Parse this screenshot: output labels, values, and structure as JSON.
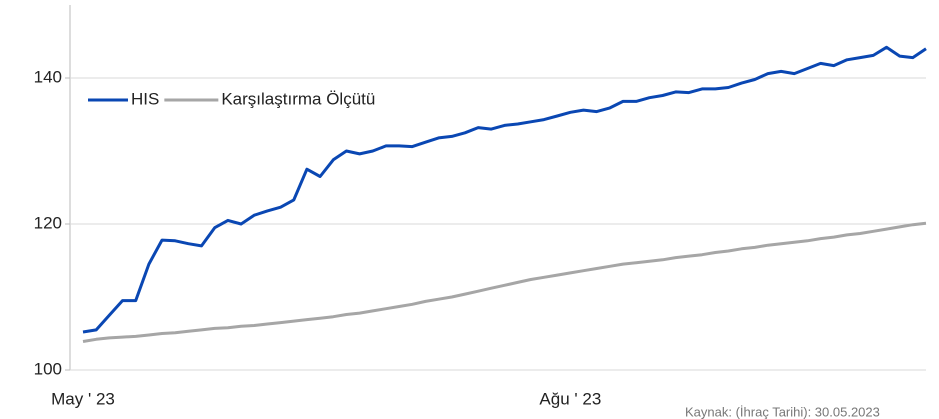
{
  "chart_data": {
    "type": "line",
    "categories": [
      "May ' 23",
      null,
      null,
      null,
      null,
      null,
      null,
      null,
      null,
      null,
      null,
      null,
      null,
      null,
      null,
      null,
      null,
      null,
      null,
      null,
      null,
      null,
      null,
      null,
      null,
      null,
      null,
      null,
      null,
      null,
      null,
      null,
      null,
      null,
      null,
      null,
      null,
      "Ağu ' 23",
      null,
      null,
      null,
      null,
      null,
      null,
      null,
      null,
      null,
      null,
      null,
      null,
      null,
      null,
      null,
      null,
      null,
      null,
      null,
      null,
      null,
      null,
      null,
      null,
      null,
      null,
      null
    ],
    "series": [
      {
        "name": "HIS",
        "color": "#0a47b3",
        "values": [
          105.2,
          105.5,
          107.5,
          109.5,
          109.5,
          114.5,
          117.8,
          117.7,
          117.3,
          117.0,
          119.5,
          120.5,
          120.0,
          121.2,
          121.8,
          122.3,
          123.3,
          127.5,
          126.5,
          128.8,
          130.0,
          129.6,
          130.0,
          130.7,
          130.7,
          130.6,
          131.2,
          131.8,
          132.0,
          132.5,
          133.2,
          133.0,
          133.5,
          133.7,
          134.0,
          134.3,
          134.8,
          135.3,
          135.6,
          135.4,
          135.9,
          136.8,
          136.8,
          137.3,
          137.6,
          138.1,
          138.0,
          138.5,
          138.5,
          138.7,
          139.3,
          139.8,
          140.6,
          140.9,
          140.6,
          141.3,
          142.0,
          141.7,
          142.5,
          142.8,
          143.1,
          144.2,
          143.0,
          142.8,
          144.0
        ]
      },
      {
        "name": "Karşılaştırma Ölçütü",
        "color": "#a6a6a6",
        "values": [
          103.9,
          104.2,
          104.4,
          104.5,
          104.6,
          104.8,
          105.0,
          105.1,
          105.3,
          105.5,
          105.7,
          105.8,
          106.0,
          106.1,
          106.3,
          106.5,
          106.7,
          106.9,
          107.1,
          107.3,
          107.6,
          107.8,
          108.1,
          108.4,
          108.7,
          109.0,
          109.4,
          109.7,
          110.0,
          110.4,
          110.8,
          111.2,
          111.6,
          112.0,
          112.4,
          112.7,
          113.0,
          113.3,
          113.6,
          113.9,
          114.2,
          114.5,
          114.7,
          114.9,
          115.1,
          115.4,
          115.6,
          115.8,
          116.1,
          116.3,
          116.6,
          116.8,
          117.1,
          117.3,
          117.5,
          117.7,
          118.0,
          118.2,
          118.5,
          118.7,
          119.0,
          119.3,
          119.6,
          119.9,
          120.1
        ]
      }
    ],
    "ylim": [
      100,
      150
    ],
    "yticks": [
      100,
      120,
      140
    ],
    "grid": true,
    "legend": "upper left",
    "source": "Kaynak: (İhraç Tarihi): 30.05.2023"
  }
}
